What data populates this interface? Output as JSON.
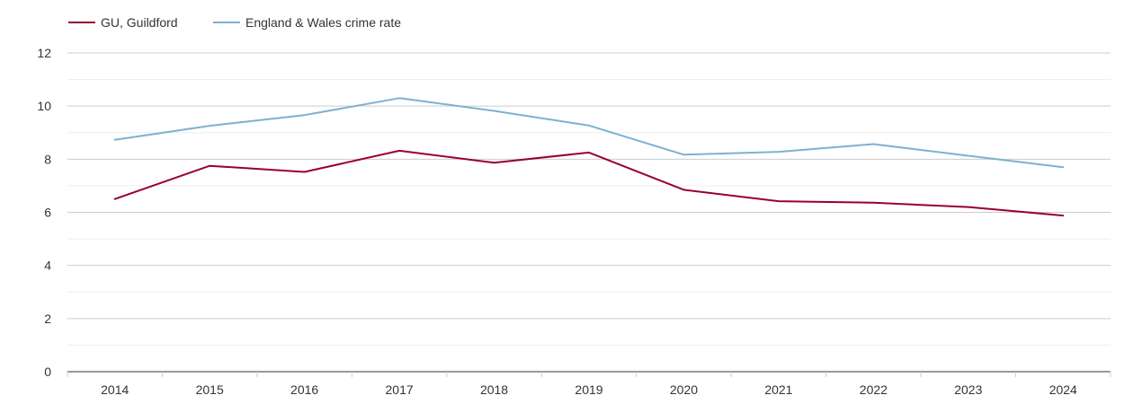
{
  "chart_data": {
    "type": "line",
    "title": "",
    "xlabel": "",
    "ylabel": "",
    "x": [
      "2014",
      "2015",
      "2016",
      "2017",
      "2018",
      "2019",
      "2020",
      "2021",
      "2022",
      "2023",
      "2024"
    ],
    "ylim": [
      0,
      12
    ],
    "yticks": [
      "0",
      "2",
      "4",
      "6",
      "8",
      "10",
      "12"
    ],
    "grid": true,
    "legend_position": "top-left",
    "series": [
      {
        "name": "GU, Guildford",
        "color": "#99002e",
        "values": [
          6.5,
          7.75,
          7.52,
          8.32,
          7.87,
          8.25,
          6.85,
          6.42,
          6.36,
          6.2,
          5.88
        ]
      },
      {
        "name": "England & Wales crime rate",
        "color": "#7fb0d0",
        "values": [
          8.73,
          9.26,
          9.66,
          10.3,
          9.82,
          9.27,
          8.17,
          8.28,
          8.57,
          8.13,
          7.7
        ]
      }
    ]
  }
}
